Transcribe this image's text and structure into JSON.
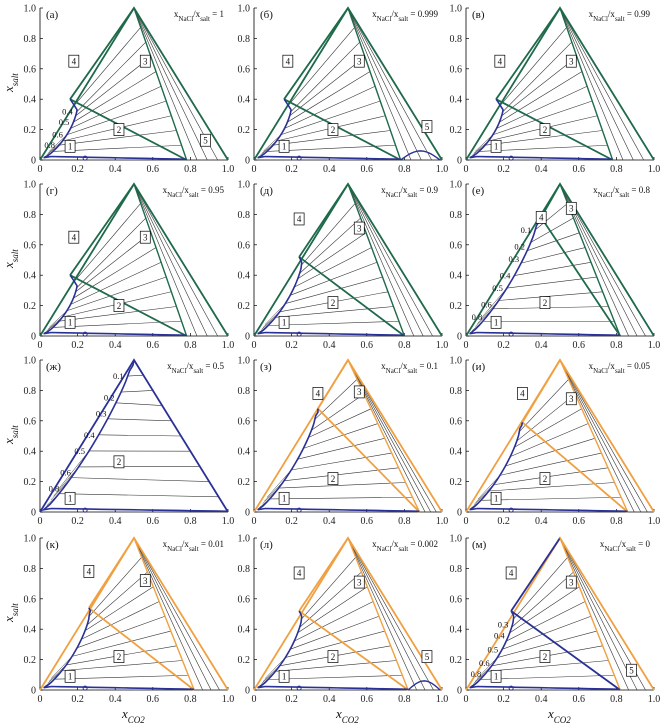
{
  "chart_data": {
    "type": "ternary-phase-diagram-grid",
    "x_axis_label": "x",
    "x_axis_subscript": "CO2",
    "y_axis_label": "x",
    "y_axis_subscript": "salt",
    "x_ticks": [
      "0",
      "0.2",
      "0.4",
      "0.6",
      "0.8",
      "1.0"
    ],
    "y_ticks": [
      "0",
      "0.2",
      "0.4",
      "0.6",
      "0.8",
      "1.0"
    ],
    "ratio_prefix": "x",
    "ratio_sub1": "NaCl",
    "ratio_mid": "/x",
    "ratio_sub2": "salt",
    "colors": {
      "green": "#1e6a4a",
      "blue": "#2a3196",
      "orange": "#f0a040",
      "tieline": "#333333"
    },
    "panels": [
      {
        "label": "(а)",
        "ratio": "1",
        "outline": "green",
        "three_phase": {
          "v1": [
            0.16,
            0.4
          ],
          "v2": [
            0.78,
            0
          ],
          "v3": [
            0.5,
            1
          ]
        },
        "inner_edge": "green",
        "binodal_end": 0.78,
        "bump": false,
        "region_labels": [
          "1",
          "2",
          "3",
          "4",
          "5"
        ],
        "tie_values": [
          "0.8",
          "0.6",
          "0.5",
          "0.4"
        ]
      },
      {
        "label": "(б)",
        "ratio": "0.999",
        "outline": "green",
        "three_phase": {
          "v1": [
            0.16,
            0.4
          ],
          "v2": [
            0.78,
            0
          ],
          "v3": [
            0.5,
            1
          ]
        },
        "inner_edge": "green",
        "binodal_end": 0.78,
        "bump": true,
        "region_labels": [
          "1",
          "2",
          "3",
          "4",
          "5"
        ],
        "tie_values": []
      },
      {
        "label": "(в)",
        "ratio": "0.99",
        "outline": "green",
        "three_phase": {
          "v1": [
            0.16,
            0.4
          ],
          "v2": [
            0.78,
            0
          ],
          "v3": [
            0.5,
            1
          ]
        },
        "inner_edge": "green",
        "binodal_end": 0.78,
        "bump": false,
        "region_labels": [
          "1",
          "2",
          "3",
          "4"
        ],
        "tie_values": []
      },
      {
        "label": "(г)",
        "ratio": "0.95",
        "outline": "green",
        "three_phase": {
          "v1": [
            0.16,
            0.4
          ],
          "v2": [
            0.78,
            0
          ],
          "v3": [
            0.5,
            1
          ]
        },
        "inner_edge": "green",
        "binodal_end": 0.78,
        "bump": false,
        "region_labels": [
          "1",
          "2",
          "3",
          "4"
        ],
        "tie_values": []
      },
      {
        "label": "(д)",
        "ratio": "0.9",
        "outline": "green",
        "three_phase": {
          "v1": [
            0.24,
            0.52
          ],
          "v2": [
            0.8,
            0
          ],
          "v3": [
            0.5,
            1
          ]
        },
        "inner_edge": "green",
        "binodal_end": 0.8,
        "bump": false,
        "region_labels": [
          "1",
          "2",
          "3",
          "4"
        ],
        "tie_values": []
      },
      {
        "label": "(е)",
        "ratio": "0.8",
        "outline": "green",
        "three_phase": {
          "v1": [
            0.4,
            0.78
          ],
          "v2": [
            0.82,
            0
          ],
          "v3": [
            0.5,
            1
          ]
        },
        "inner_edge": "green",
        "binodal_end": 0.82,
        "bump": false,
        "region_labels": [
          "1",
          "2",
          "3",
          "4"
        ],
        "tie_values": [
          "0.8",
          "0.6",
          "0.5",
          "0.4",
          "0.3",
          "0.2",
          "0.1"
        ]
      },
      {
        "label": "(ж)",
        "ratio": "0.5",
        "outline": "blue",
        "three_phase": null,
        "inner_edge": "none",
        "binodal_end": 1.0,
        "bump": false,
        "region_labels": [
          "1",
          "2"
        ],
        "tie_values": [
          "0.8",
          "0.6",
          "0.5",
          "0.4",
          "0.3",
          "0.2",
          "0.1"
        ]
      },
      {
        "label": "(з)",
        "ratio": "0.1",
        "outline": "orange",
        "three_phase": {
          "v1": [
            0.34,
            0.68
          ],
          "v2": [
            0.88,
            0
          ],
          "v3": [
            0.5,
            1
          ]
        },
        "inner_edge": "orange",
        "binodal_end": 0.88,
        "bump": false,
        "region_labels": [
          "1",
          "2",
          "3",
          "4"
        ],
        "tie_values": []
      },
      {
        "label": "(и)",
        "ratio": "0.05",
        "outline": "orange",
        "three_phase": {
          "v1": [
            0.3,
            0.59
          ],
          "v2": [
            0.86,
            0
          ],
          "v3": [
            0.5,
            1
          ]
        },
        "inner_edge": "orange",
        "binodal_end": 0.86,
        "bump": false,
        "region_labels": [
          "1",
          "2",
          "3",
          "4"
        ],
        "tie_values": []
      },
      {
        "label": "(к)",
        "ratio": "0.01",
        "outline": "orange",
        "three_phase": {
          "v1": [
            0.26,
            0.54
          ],
          "v2": [
            0.82,
            0
          ],
          "v3": [
            0.5,
            1
          ]
        },
        "inner_edge": "orange",
        "binodal_end": 0.82,
        "bump": false,
        "region_labels": [
          "1",
          "2",
          "3",
          "4"
        ],
        "tie_values": []
      },
      {
        "label": "(л)",
        "ratio": "0.002",
        "outline": "orange",
        "three_phase": {
          "v1": [
            0.24,
            0.52
          ],
          "v2": [
            0.82,
            0
          ],
          "v3": [
            0.5,
            1
          ]
        },
        "inner_edge": "orange",
        "binodal_end": 0.82,
        "bump": true,
        "region_labels": [
          "1",
          "2",
          "3",
          "4",
          "5"
        ],
        "tie_values": []
      },
      {
        "label": "(м)",
        "ratio": "0",
        "outline": "orange",
        "three_phase": {
          "v1": [
            0.24,
            0.52
          ],
          "v2": [
            0.82,
            0
          ],
          "v3": [
            0.5,
            1
          ]
        },
        "inner_edge": "blue",
        "binodal_end": 0.82,
        "bump": false,
        "region_labels": [
          "1",
          "2",
          "3",
          "4",
          "5"
        ],
        "tie_values": [
          "0.8",
          "0.6",
          "0.5",
          "0.4",
          "0.3"
        ]
      }
    ]
  }
}
